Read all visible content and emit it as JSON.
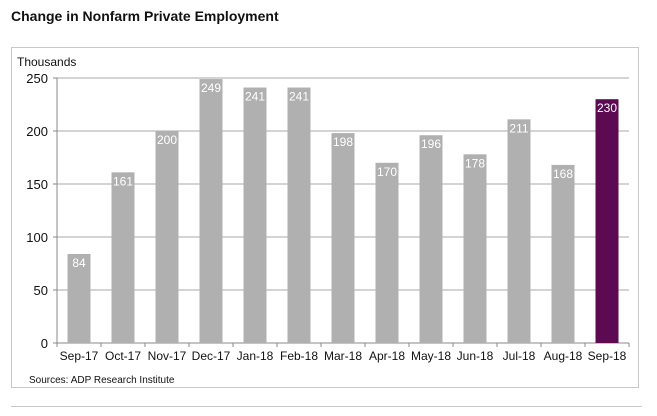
{
  "chart_data": {
    "type": "bar",
    "title": "Change in Nonfarm Private Employment",
    "ylabel": "Thousands",
    "xlabel": "",
    "ylim": [
      0,
      250
    ],
    "yticks": [
      0,
      50,
      100,
      150,
      200,
      250
    ],
    "grid": true,
    "categories": [
      "Sep-17",
      "Oct-17",
      "Nov-17",
      "Dec-17",
      "Jan-18",
      "Feb-18",
      "Mar-18",
      "Apr-18",
      "May-18",
      "Jun-18",
      "Jul-18",
      "Aug-18",
      "Sep-18"
    ],
    "values": [
      84,
      161,
      200,
      249,
      241,
      241,
      198,
      170,
      196,
      178,
      211,
      168,
      230
    ],
    "colors": {
      "default": "#b0b0b0",
      "highlight": "#5c0a52"
    },
    "highlight_index": 12,
    "source": "Sources: ADP Research Institute"
  }
}
